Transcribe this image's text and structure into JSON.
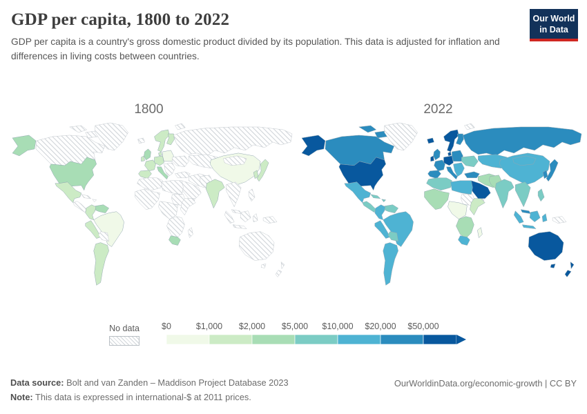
{
  "header": {
    "title": "GDP per capita, 1800 to 2022",
    "subtitle": "GDP per capita is a country's gross domestic product divided by its population. This data is adjusted for inflation and differences in living costs between countries.",
    "logo_line1": "Our World",
    "logo_line2": "in Data",
    "logo_bg_color": "#12325a",
    "logo_bar_color": "#cf2721"
  },
  "legend": {
    "no_data_label": "No data",
    "tick_labels": [
      "$0",
      "$1,000",
      "$2,000",
      "$5,000",
      "$10,000",
      "$20,000",
      "$50,000"
    ],
    "colors": [
      "#f0f9e8",
      "#ccebc5",
      "#a8ddb5",
      "#7bccc4",
      "#4eb3d3",
      "#2b8cbe",
      "#08589e"
    ],
    "hatch_line_color": "#cfd4d8"
  },
  "footer": {
    "source_label": "Data source:",
    "source_text": " Bolt and van Zanden – Maddison Project Database 2023",
    "note_label": "Note:",
    "note_text": " This data is expressed in international-$ at 2011 prices.",
    "right_text": "OurWorldinData.org/economic-growth | CC BY"
  },
  "chart_data": {
    "type": "heatmap",
    "subtype": "choropleth-world-map-pair",
    "title": "GDP per capita, 1800 to 2022",
    "unit": "international-$ at 2011 prices",
    "legend_position": "bottom",
    "bins": [
      "$0–$1,000",
      "$1,000–$2,000",
      "$2,000–$5,000",
      "$5,000–$10,000",
      "$10,000–$20,000",
      "$20,000–$50,000",
      "$50,000+"
    ],
    "bin_colors": [
      "#f0f9e8",
      "#ccebc5",
      "#a8ddb5",
      "#7bccc4",
      "#4eb3d3",
      "#2b8cbe",
      "#08589e"
    ],
    "no_data_key": "nodata",
    "maps": [
      {
        "year": "1800",
        "regions": {
          "alaska": "b3",
          "canada": "nodata",
          "canadian-arctic": "nodata",
          "greenland": "nodata",
          "usa": "b3",
          "mexico": "b2",
          "central-america": "nodata",
          "cuba": "nodata",
          "hispaniola": "nodata",
          "venezuela": "b3",
          "colombia": "b2",
          "peru": "b2",
          "brazil": "b1",
          "bolivia": "nodata",
          "argentina-chile": "b2",
          "iceland": "nodata",
          "uk": "b3",
          "ireland": "b2",
          "norway-sweden": "b2",
          "finland": "b2",
          "denmark": "b2",
          "germany-central-europe": "b2",
          "poland-baltics": "b1",
          "france": "b2",
          "iberia": "b2",
          "italy": "b3",
          "balkans": "nodata",
          "ukraine-east-europe": "nodata",
          "russia": "nodata",
          "svalbard": "nodata",
          "central-asia": "nodata",
          "turkey": "nodata",
          "iran-iraq": "nodata",
          "saudi-arabia": "nodata",
          "yemen": "nodata",
          "morocco-algeria": "nodata",
          "libya-egypt": "nodata",
          "sudan": "nodata",
          "west-africa": "nodata",
          "central-africa": "nodata",
          "east-africa": "nodata",
          "southern-africa": "nodata",
          "south-africa": "b3",
          "madagascar": "nodata",
          "pakistan-afghanistan": "nodata",
          "india": "b2",
          "china": "b1",
          "mongolia": "nodata",
          "korea": "b2",
          "japan": "b2",
          "mainland-se-asia": "nodata",
          "malaysia": "nodata",
          "sumatra": "nodata",
          "java": "nodata",
          "borneo": "nodata",
          "sulawesi": "nodata",
          "philippines": "nodata",
          "new-guinea": "nodata",
          "australia": "nodata",
          "tasmania": "nodata",
          "new-zealand": "nodata"
        }
      },
      {
        "year": "2022",
        "regions": {
          "alaska": "b7",
          "canada": "b6",
          "canadian-arctic": "b6",
          "greenland": "nodata",
          "usa": "b7",
          "mexico": "b5",
          "central-america": "b4",
          "cuba": "b4",
          "hispaniola": "b4",
          "venezuela": "b4",
          "colombia": "b5",
          "peru": "b5",
          "brazil": "b5",
          "bolivia": "b4",
          "argentina-chile": "b5",
          "iceland": "b7",
          "uk": "b6",
          "ireland": "b7",
          "norway-sweden": "b7",
          "finland": "b6",
          "denmark": "b7",
          "germany-central-europe": "b7",
          "poland-baltics": "b6",
          "france": "b6",
          "iberia": "b6",
          "italy": "b6",
          "balkans": "b5",
          "ukraine-east-europe": "b4",
          "russia": "b6",
          "svalbard": "nodata",
          "central-asia": "b5",
          "turkey": "b6",
          "iran-iraq": "b3",
          "saudi-arabia": "b7",
          "yemen": "nodata",
          "morocco-algeria": "b4",
          "libya-egypt": "b5",
          "sudan": "nodata",
          "west-africa": "b3",
          "central-africa": "b1",
          "east-africa": "b2",
          "southern-africa": "b3",
          "south-africa": "b5",
          "madagascar": "b1",
          "pakistan-afghanistan": "b3",
          "india": "b4",
          "china": "b5",
          "mongolia": "b5",
          "korea": "b6",
          "japan": "b6",
          "mainland-se-asia": "b4",
          "malaysia": "b6",
          "sumatra": "b5",
          "java": "b5",
          "borneo": "b5",
          "sulawesi": "b5",
          "philippines": "b4",
          "new-guinea": "nodata",
          "australia": "b7",
          "tasmania": "b7",
          "new-zealand": "b7"
        }
      }
    ]
  }
}
